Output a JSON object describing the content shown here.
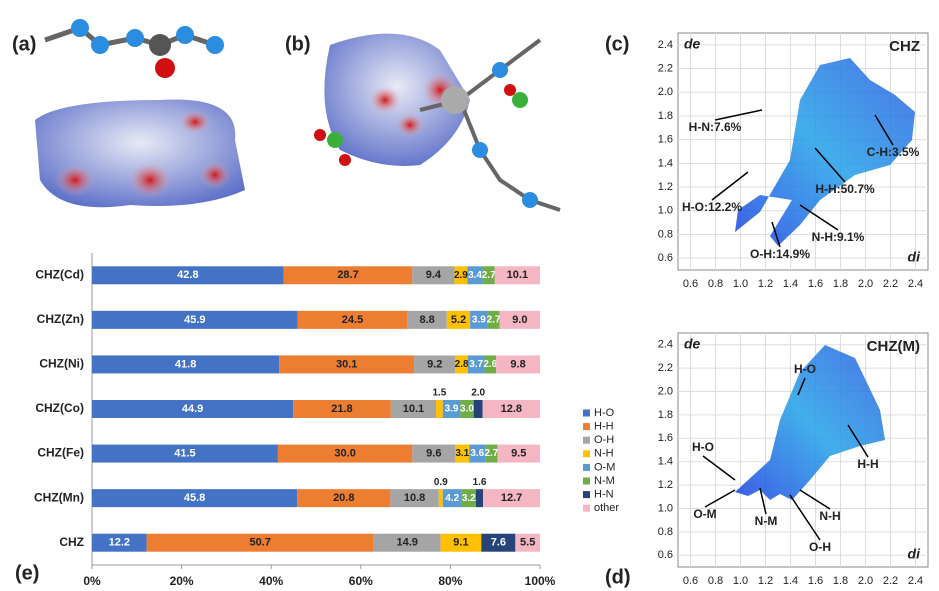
{
  "panel_labels": [
    "(a)",
    "(b)",
    "(c)",
    "(d)",
    "(e)"
  ],
  "chart_data": [
    {
      "type": "fingerprint",
      "title": "CHZ",
      "x_label": "di",
      "y_label": "de",
      "xlim": [
        0.5,
        2.5
      ],
      "ylim": [
        0.5,
        2.5
      ],
      "xticks": [
        0.6,
        0.8,
        {
          "value": 1,
          "label": "1.0"
        },
        1.2,
        1.4,
        1.6,
        1.8,
        {
          "value": 2,
          "label": "2.0"
        },
        2.2,
        2.4
      ],
      "yticks": [
        0.6,
        0.8,
        {
          "value": 1,
          "label": "1.0"
        },
        1.2,
        1.4,
        1.6,
        1.8,
        {
          "value": 2,
          "label": "2.0"
        },
        2.2,
        2.4
      ],
      "grid": true,
      "annotations": [
        "H-N:7.6%",
        "C-H:3.5%",
        "H-H:50.7%",
        "H-O:12.2%",
        "N-H:9.1%",
        "O-H:14.9%"
      ]
    },
    {
      "type": "fingerprint",
      "title": "CHZ(M)",
      "x_label": "di",
      "y_label": "de",
      "xlim": [
        0.5,
        2.5
      ],
      "ylim": [
        0.5,
        2.5
      ],
      "xticks": [
        0.6,
        0.8,
        {
          "value": 1,
          "label": "1.0"
        },
        1.2,
        1.4,
        1.6,
        1.8,
        {
          "value": 2,
          "label": "2.0"
        },
        2.2,
        2.4
      ],
      "yticks": [
        0.6,
        0.8,
        {
          "value": 1,
          "label": "1.0"
        },
        1.2,
        1.4,
        1.6,
        1.8,
        {
          "value": 2,
          "label": "2.0"
        },
        2.2,
        2.4
      ],
      "grid": true,
      "annotations": [
        "H-O",
        "H-O",
        "H-H",
        "O-M",
        "N-M",
        "N-H",
        "O-H"
      ]
    },
    {
      "type": "stacked-bar",
      "orientation": "horizontal",
      "legend": "right",
      "categories": [
        "CHZ(Cd)",
        "CHZ(Zn)",
        "CHZ(Ni)",
        "CHZ(Co)",
        "CHZ(Fe)",
        "CHZ(Mn)",
        "CHZ"
      ],
      "xlim": [
        0,
        100
      ],
      "xticks": [
        {
          "value": 0,
          "label": "0%"
        },
        {
          "value": 20,
          "label": "20%"
        },
        {
          "value": 40,
          "label": "40%"
        },
        {
          "value": 60,
          "label": "60%"
        },
        {
          "value": 80,
          "label": "80%"
        },
        {
          "value": 100,
          "label": "100%"
        }
      ],
      "series": [
        {
          "name": "H-O",
          "color": "#4472c4",
          "values": [
            42.8,
            45.9,
            41.8,
            44.9,
            41.5,
            45.8,
            12.2
          ],
          "value_labels": [
            "42.8",
            "45.9",
            "41.8",
            "44.9",
            "41.5",
            "45.8",
            "12.2"
          ]
        },
        {
          "name": "H-H",
          "color": "#ed7d31",
          "values": [
            28.7,
            24.5,
            30.1,
            21.8,
            30.0,
            20.8,
            50.7
          ],
          "value_labels": [
            "28.7",
            "24.5",
            "30.1",
            "21.8",
            "30.0",
            "20.8",
            "50.7"
          ]
        },
        {
          "name": "O-H",
          "color": "#a5a5a5",
          "values": [
            9.4,
            8.8,
            9.2,
            10.1,
            9.6,
            10.8,
            14.9
          ],
          "value_labels": [
            "9.4",
            "8.8",
            "9.2",
            "10.1",
            "9.6",
            "10.8",
            "14.9"
          ]
        },
        {
          "name": "N-H",
          "color": "#ffc000",
          "values": [
            2.9,
            5.2,
            2.8,
            1.5,
            3.1,
            0.9,
            9.1
          ],
          "value_labels": [
            "2.9",
            "5.2",
            "2.8",
            "1.5",
            "3.1",
            "0.9",
            "9.1"
          ]
        },
        {
          "name": "O-M",
          "color": "#5b9bd5",
          "values": [
            3.4,
            3.9,
            3.7,
            3.9,
            3.6,
            4.2,
            null
          ],
          "value_labels": [
            "3.4",
            "3.9",
            "3.7",
            "3.9",
            "3.6",
            "4.2",
            null
          ]
        },
        {
          "name": "N-M",
          "color": "#70ad47",
          "values": [
            2.7,
            2.7,
            2.6,
            3.0,
            2.7,
            3.2,
            null
          ],
          "value_labels": [
            "2.7",
            "2.7",
            "2.6",
            "3.0",
            "2.7",
            "3.2",
            null
          ]
        },
        {
          "name": "H-N",
          "color": "#264478",
          "values": [
            null,
            null,
            null,
            2.0,
            null,
            1.6,
            7.6
          ],
          "value_labels": [
            null,
            null,
            null,
            "2.0",
            null,
            "1.6",
            "7.6"
          ]
        },
        {
          "name": "other",
          "color": "#f4b6c2",
          "values": [
            10.1,
            9.0,
            9.8,
            12.8,
            9.5,
            12.7,
            5.5
          ],
          "value_labels": [
            "10.1",
            "9.0",
            "9.8",
            "12.8",
            "9.5",
            "12.7",
            "5.5"
          ]
        }
      ]
    }
  ]
}
